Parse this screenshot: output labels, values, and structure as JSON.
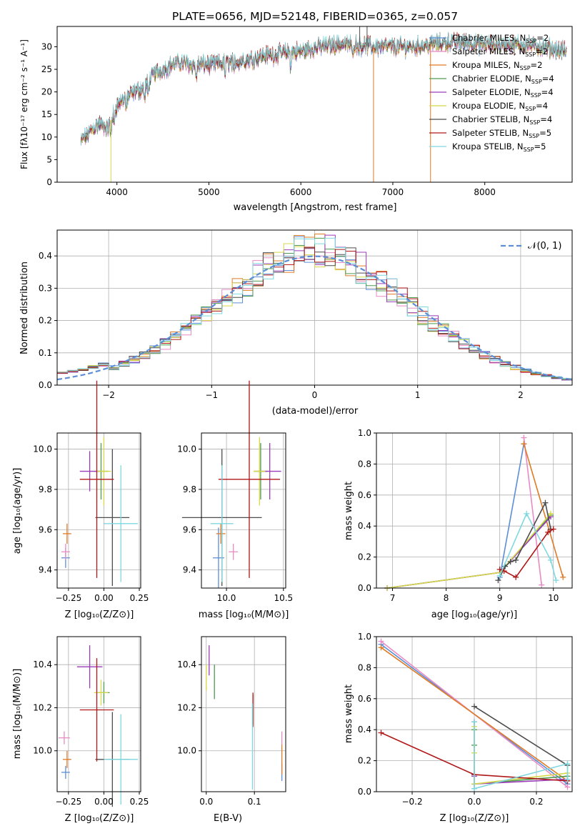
{
  "chart_data": [
    {
      "type": "line",
      "title": "PLATE=0656, MJD=52148, FIBERID=0365, z=0.057",
      "xlabel": "wavelength [Angstrom, rest frame]",
      "ylabel": "Flux [fλ10⁻¹⁷ erg cm⁻² s⁻¹ A⁻¹]",
      "xlim": [
        3350,
        8950
      ],
      "ylim": [
        0,
        34.5
      ],
      "xticks": [
        "4000",
        "5000",
        "6000",
        "7000",
        "8000"
      ],
      "yticks": [
        "0",
        "5",
        "10",
        "15",
        "20",
        "25",
        "30"
      ],
      "legend": "right",
      "grid": false,
      "data_x_range": [
        3610,
        8890
      ],
      "continuum": {
        "x": [
          3610,
          3700,
          3800,
          3900,
          4000,
          4100,
          4200,
          4300,
          4400,
          4500,
          4600,
          4700,
          4800,
          5000,
          5200,
          5400,
          5600,
          5800,
          6000,
          6200,
          6400,
          6600,
          6800,
          7000,
          7200,
          7400,
          7600,
          7800,
          8000,
          8200,
          8400,
          8600,
          8890
        ],
        "y": [
          9,
          11,
          13,
          12,
          17,
          19,
          20,
          21,
          24,
          25,
          26,
          26.5,
          26,
          26,
          26.5,
          27,
          28,
          28.5,
          29,
          30,
          30.5,
          30.5,
          30,
          30,
          30,
          30.5,
          31,
          31,
          30.5,
          30.5,
          30.5,
          30,
          29
        ]
      },
      "series": [
        {
          "name": "Chabrier MILES, N_SSP=2",
          "label": "Chabrier MILES, N",
          "sub": "SSP",
          "eq": "=2",
          "color": "#5b8ed6"
        },
        {
          "name": "Salpeter MILES, N_SSP=2",
          "label": "Salpeter MILES, N",
          "sub": "SSP",
          "eq": "=2",
          "color": "#e88bc4"
        },
        {
          "name": "Kroupa MILES, N_SSP=2",
          "label": "Kroupa MILES, N",
          "sub": "SSP",
          "eq": "=2",
          "color": "#e07b26"
        },
        {
          "name": "Chabrier ELODIE, N_SSP=4",
          "label": "Chabrier ELODIE, N",
          "sub": "SSP",
          "eq": "=4",
          "color": "#4f9a4f"
        },
        {
          "name": "Salpeter ELODIE, N_SSP=4",
          "label": "Salpeter ELODIE, N",
          "sub": "SSP",
          "eq": "=4",
          "color": "#9b3cb8"
        },
        {
          "name": "Kroupa ELODIE, N_SSP=4",
          "label": "Kroupa ELODIE, N",
          "sub": "SSP",
          "eq": "=4",
          "color": "#d6d84a"
        },
        {
          "name": "Chabrier STELIB, N_SSP=4",
          "label": "Chabrier STELIB, N",
          "sub": "SSP",
          "eq": "=4",
          "color": "#4d4d4d"
        },
        {
          "name": "Salpeter STELIB, N_SSP=5",
          "label": "Salpeter STELIB, N",
          "sub": "SSP",
          "eq": "=5",
          "color": "#b01818"
        },
        {
          "name": "Kroupa STELIB, N_SSP=5",
          "label": "Kroupa STELIB, N",
          "sub": "SSP",
          "eq": "=5",
          "color": "#7fd8e0"
        }
      ]
    },
    {
      "type": "line",
      "subtype": "step-histogram",
      "xlabel": "(data-model)/error",
      "ylabel": "Normed distribution",
      "xlim": [
        -2.5,
        2.5
      ],
      "ylim": [
        0,
        0.48
      ],
      "xticks": [
        "−2",
        "−1",
        "0",
        "1",
        "2"
      ],
      "yticks": [
        "0.0",
        "0.1",
        "0.2",
        "0.3",
        "0.4"
      ],
      "grid": true,
      "legend": "top-right",
      "reference_label": "𝒩(0, 1)",
      "reference_color": "#5b8ed6",
      "bin_start": -2.5,
      "bin_width": 0.1,
      "series_colors": [
        "#5b8ed6",
        "#e88bc4",
        "#e07b26",
        "#4f9a4f",
        "#9b3cb8",
        "#d6d84a",
        "#4d4d4d",
        "#b01818",
        "#7fd8e0"
      ]
    },
    {
      "type": "scatter",
      "subtype": "errorbar",
      "xlabel": "Z [log₁₀(Z/Z⊙)]",
      "ylabel": "age  [log₁₀(age/yr)]",
      "xlim": [
        -0.33,
        0.26
      ],
      "ylim": [
        9.31,
        10.08
      ],
      "xticks": [
        -0.25,
        0.0,
        0.25
      ],
      "xticklabels": [
        "−0.25",
        "0.00",
        "0.25"
      ],
      "yticks": [
        9.4,
        9.6,
        9.8,
        10.0
      ],
      "yticklabels": [
        "9.4",
        "9.6",
        "9.8",
        "10.0"
      ],
      "grid": true,
      "points": [
        {
          "x": -0.27,
          "xerr": 0.03,
          "y": 9.46,
          "yerr": 0.05,
          "color": "#5b8ed6"
        },
        {
          "x": -0.27,
          "xerr": 0.03,
          "y": 9.49,
          "yerr": 0.04,
          "color": "#e88bc4"
        },
        {
          "x": -0.26,
          "xerr": 0.03,
          "y": 9.58,
          "yerr": 0.05,
          "color": "#e07b26"
        },
        {
          "x": -0.02,
          "xerr": 0.05,
          "y": 9.89,
          "yerr": 0.14,
          "color": "#4f9a4f"
        },
        {
          "x": -0.1,
          "xerr": 0.07,
          "y": 9.89,
          "yerr": 0.1,
          "color": "#9b3cb8"
        },
        {
          "x": 0.0,
          "xerr": 0.05,
          "y": 9.89,
          "yerr": 0.17,
          "color": "#d6d84a"
        },
        {
          "x": 0.06,
          "xerr": 0.12,
          "y": 9.66,
          "yerr": 0.34,
          "color": "#4d4d4d"
        },
        {
          "x": -0.05,
          "xerr": 0.12,
          "y": 9.85,
          "yerr": 0.49,
          "color": "#b01818"
        },
        {
          "x": 0.12,
          "xerr": 0.12,
          "y": 9.63,
          "yerr": 0.29,
          "color": "#7fd8e0"
        }
      ]
    },
    {
      "type": "scatter",
      "subtype": "errorbar",
      "xlabel": "mass [log₁₀(M/M⊙)]",
      "ylabel": "",
      "xlim": [
        9.78,
        10.52
      ],
      "ylim": [
        9.31,
        10.08
      ],
      "xticks": [
        10.0,
        10.5
      ],
      "xticklabels": [
        "10.0",
        "10.5"
      ],
      "yticks": [
        9.4,
        9.6,
        9.8,
        10.0
      ],
      "yticklabels": [
        "9.4",
        "9.6",
        "9.8",
        "10.0"
      ],
      "grid": true,
      "points": [
        {
          "x": 9.93,
          "xerr": 0.05,
          "y": 9.46,
          "yerr": 0.15,
          "color": "#5b8ed6"
        },
        {
          "x": 10.06,
          "xerr": 0.04,
          "y": 9.49,
          "yerr": 0.04,
          "color": "#e88bc4"
        },
        {
          "x": 9.95,
          "xerr": 0.04,
          "y": 9.58,
          "yerr": 0.05,
          "color": "#e07b26"
        },
        {
          "x": 10.3,
          "xerr": 0.06,
          "y": 9.89,
          "yerr": 0.14,
          "color": "#4f9a4f"
        },
        {
          "x": 10.38,
          "xerr": 0.1,
          "y": 9.89,
          "yerr": 0.14,
          "color": "#9b3cb8"
        },
        {
          "x": 10.29,
          "xerr": 0.05,
          "y": 9.89,
          "yerr": 0.17,
          "color": "#d6d84a"
        },
        {
          "x": 9.96,
          "xerr": 0.35,
          "y": 9.66,
          "yerr": 0.34,
          "color": "#4d4d4d"
        },
        {
          "x": 10.2,
          "xerr": 0.27,
          "y": 9.85,
          "yerr": 0.49,
          "color": "#b01818"
        },
        {
          "x": 9.96,
          "xerr": 0.1,
          "y": 9.63,
          "yerr": 0.29,
          "color": "#7fd8e0"
        }
      ]
    },
    {
      "type": "line",
      "xlabel": "age  [log₁₀(age/yr)]",
      "ylabel": "mass weight",
      "xlim": [
        6.7,
        10.35
      ],
      "ylim": [
        0,
        1.0
      ],
      "xticks": [
        7,
        8,
        9,
        10
      ],
      "xticklabels": [
        "7",
        "8",
        "9",
        "10"
      ],
      "yticks": [
        0.0,
        0.2,
        0.4,
        0.6,
        0.8,
        1.0
      ],
      "yticklabels": [
        "0.0",
        "0.2",
        "0.4",
        "0.6",
        "0.8",
        "1.0"
      ],
      "grid": true,
      "series": [
        {
          "color": "#5b8ed6",
          "x": [
            9.0,
            9.45
          ],
          "y": [
            0.07,
            0.93
          ]
        },
        {
          "color": "#e88bc4",
          "x": [
            9.45,
            9.78
          ],
          "y": [
            0.97,
            0.02
          ]
        },
        {
          "color": "#e07b26",
          "x": [
            9.45,
            10.18
          ],
          "y": [
            0.93,
            0.07
          ]
        },
        {
          "color": "#4f9a4f",
          "x": [
            6.9,
            9.0,
            9.95
          ],
          "y": [
            0.0,
            0.1,
            0.47
          ]
        },
        {
          "color": "#9b3cb8",
          "x": [
            6.9,
            9.0,
            9.95
          ],
          "y": [
            0.0,
            0.1,
            0.46
          ]
        },
        {
          "color": "#d6d84a",
          "x": [
            6.9,
            9.0,
            9.95
          ],
          "y": [
            0.0,
            0.1,
            0.48
          ]
        },
        {
          "color": "#4d4d4d",
          "x": [
            8.97,
            9.1,
            9.2,
            9.3,
            9.85,
            9.95
          ],
          "y": [
            0.05,
            0.14,
            0.17,
            0.18,
            0.55,
            0.38
          ]
        },
        {
          "color": "#b01818",
          "x": [
            9.0,
            9.08,
            9.3,
            9.9,
            10.0
          ],
          "y": [
            0.12,
            0.11,
            0.07,
            0.36,
            0.38
          ]
        },
        {
          "color": "#7fd8e0",
          "x": [
            9.0,
            9.5,
            9.95,
            10.05
          ],
          "y": [
            0.08,
            0.48,
            0.18,
            0.05
          ]
        }
      ]
    },
    {
      "type": "scatter",
      "subtype": "errorbar",
      "xlabel": "Z [log₁₀(Z/Z⊙)]",
      "ylabel": "mass [log₁₀(M/M⊙)]",
      "xlim": [
        -0.33,
        0.26
      ],
      "ylim": [
        9.81,
        10.53
      ],
      "xticks": [
        -0.25,
        0.0,
        0.25
      ],
      "xticklabels": [
        "−0.25",
        "0.00",
        "0.25"
      ],
      "yticks": [
        10.0,
        10.2,
        10.4
      ],
      "yticklabels": [
        "10.0",
        "10.2",
        "10.4"
      ],
      "grid": true,
      "points": [
        {
          "x": -0.27,
          "xerr": 0.03,
          "y": 9.9,
          "yerr": 0.03,
          "color": "#5b8ed6"
        },
        {
          "x": -0.28,
          "xerr": 0.04,
          "y": 10.06,
          "yerr": 0.03,
          "color": "#e88bc4"
        },
        {
          "x": -0.26,
          "xerr": 0.03,
          "y": 9.96,
          "yerr": 0.04,
          "color": "#e07b26"
        },
        {
          "x": 0.0,
          "xerr": 0.04,
          "y": 10.27,
          "yerr": 0.05,
          "color": "#4f9a4f"
        },
        {
          "x": -0.1,
          "xerr": 0.09,
          "y": 10.39,
          "yerr": 0.1,
          "color": "#9b3cb8"
        },
        {
          "x": -0.02,
          "xerr": 0.05,
          "y": 10.27,
          "yerr": 0.06,
          "color": "#d6d84a"
        },
        {
          "x": 0.06,
          "xerr": 0.12,
          "y": 9.96,
          "yerr": 0.22,
          "color": "#4d4d4d"
        },
        {
          "x": -0.05,
          "xerr": 0.12,
          "y": 10.19,
          "yerr": 0.24,
          "color": "#b01818"
        },
        {
          "x": 0.12,
          "xerr": 0.12,
          "y": 9.96,
          "yerr": 0.21,
          "color": "#7fd8e0"
        }
      ]
    },
    {
      "type": "scatter",
      "subtype": "errorbar",
      "xlabel": "E(B-V)",
      "ylabel": "",
      "xlim": [
        -0.01,
        0.165
      ],
      "ylim": [
        9.81,
        10.53
      ],
      "xticks": [
        0.0,
        0.1
      ],
      "xticklabels": [
        "0.0",
        "0.1"
      ],
      "yticks": [
        10.0,
        10.2,
        10.4
      ],
      "yticklabels": [
        "10.0",
        "10.2",
        "10.4"
      ],
      "grid": true,
      "points": [
        {
          "x": 0.157,
          "xerr": 0,
          "y": 9.9,
          "yerr": 0.04,
          "color": "#5b8ed6"
        },
        {
          "x": 0.157,
          "xerr": 0,
          "y": 10.06,
          "yerr": 0.03,
          "color": "#e88bc4"
        },
        {
          "x": 0.157,
          "xerr": 0,
          "y": 9.96,
          "yerr": 0.07,
          "color": "#e07b26"
        },
        {
          "x": 0.017,
          "xerr": 0,
          "y": 10.32,
          "yerr": 0.08,
          "color": "#4f9a4f"
        },
        {
          "x": 0.006,
          "xerr": 0,
          "y": 10.42,
          "yerr": 0.07,
          "color": "#9b3cb8"
        },
        {
          "x": 0.0,
          "xerr": 0,
          "y": 10.34,
          "yerr": 0.06,
          "color": "#d6d84a"
        },
        {
          "x": 0.097,
          "xerr": 0,
          "y": 10.19,
          "yerr": 0.07,
          "color": "#4d4d4d"
        },
        {
          "x": 0.097,
          "xerr": 0,
          "y": 10.19,
          "yerr": 0.08,
          "color": "#b01818"
        },
        {
          "x": 0.096,
          "xerr": 0,
          "y": 10.02,
          "yerr": 0.2,
          "color": "#7fd8e0"
        }
      ]
    },
    {
      "type": "line",
      "xlabel": "Z [log₁₀(Z/Z⊙)]",
      "ylabel": "mass weight",
      "xlim": [
        -0.315,
        0.315
      ],
      "ylim": [
        0,
        1.0
      ],
      "xticks": [
        -0.2,
        0.0,
        0.2
      ],
      "xticklabels": [
        "−0.2",
        "0.0",
        "0.2"
      ],
      "yticks": [
        0.0,
        0.2,
        0.4,
        0.6,
        0.8,
        1.0
      ],
      "yticklabels": [
        "0.0",
        "0.2",
        "0.4",
        "0.6",
        "0.8",
        "1.0"
      ],
      "grid": true,
      "series": [
        {
          "color": "#5b8ed6",
          "x": [
            -0.3,
            0.3
          ],
          "y": [
            0.95,
            0.05
          ]
        },
        {
          "color": "#e88bc4",
          "x": [
            -0.3,
            0.3
          ],
          "y": [
            0.97,
            0.03
          ]
        },
        {
          "color": "#e07b26",
          "x": [
            -0.3,
            0.3
          ],
          "y": [
            0.93,
            0.07
          ]
        },
        {
          "color": "#4f9a4f",
          "x": [
            0.0,
            0.0,
            0.0,
            0.3
          ],
          "y": [
            0.4,
            0.3,
            0.05,
            0.1
          ]
        },
        {
          "color": "#9b3cb8",
          "x": [
            0.0,
            0.0,
            0.0,
            0.3
          ],
          "y": [
            0.45,
            0.1,
            0.05,
            0.08
          ]
        },
        {
          "color": "#d6d84a",
          "x": [
            0.0,
            0.0,
            0.0,
            0.3
          ],
          "y": [
            0.42,
            0.25,
            0.05,
            0.12
          ]
        },
        {
          "color": "#4d4d4d",
          "x": [
            0.0,
            0.3
          ],
          "y": [
            0.55,
            0.17
          ]
        },
        {
          "color": "#b01818",
          "x": [
            -0.3,
            0.0,
            0.3
          ],
          "y": [
            0.38,
            0.11,
            0.07
          ]
        },
        {
          "color": "#7fd8e0",
          "x": [
            0.0,
            0.0,
            0.0,
            0.3,
            0.3
          ],
          "y": [
            0.02,
            0.45,
            0.02,
            0.18,
            0.08
          ]
        }
      ]
    }
  ]
}
